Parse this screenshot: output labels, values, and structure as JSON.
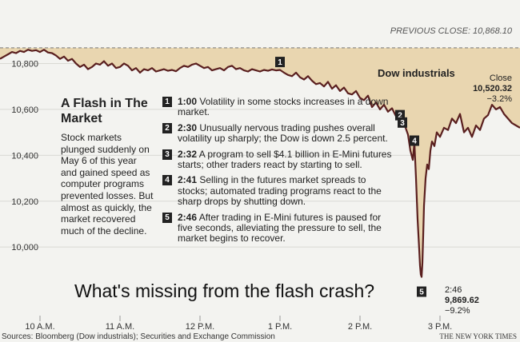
{
  "title": "A Flash in The Market",
  "intro": "Stock markets plunged suddenly on May 6 of this year and gained speed as computer programs prevented losses. But almost as quickly, the market recovered much of the decline.",
  "question": "What's missing from the flash crash?",
  "source": "Sources: Bloomberg (Dow industrials); Securities and Exchange Commission",
  "credit": "THE NEW YORK TIMES",
  "events": [
    {
      "num": "1",
      "time": "1:00",
      "text": "Volatility in some stocks increases in a down market."
    },
    {
      "num": "2",
      "time": "2:30",
      "text": "Unusually nervous trading pushes overall volatility up sharply; the Dow is down 2.5 percent."
    },
    {
      "num": "3",
      "time": "2:32",
      "text": "A program to sell $4.1 billion in E-Mini futures starts; other traders react by starting to sell."
    },
    {
      "num": "4",
      "time": "2:41",
      "text": "Selling in the futures market spreads to stocks; automated trading programs react to the sharp drops by shutting down."
    },
    {
      "num": "5",
      "time": "2:46",
      "text": "After trading in E-Mini futures is paused for five seconds, alleviating the pressure to sell, the market begins to recover."
    }
  ],
  "colors": {
    "fill": "#e9d6b0",
    "line": "#5a1f1f",
    "background": "#f3f3f0"
  },
  "chart_data": {
    "type": "area",
    "series_name": "Dow industrials",
    "previous_close_label": "PREVIOUS CLOSE: 10,868.10",
    "previous_close": 10868.1,
    "y_ticks": [
      "10,800",
      "10,600",
      "10,400",
      "10,200",
      "10,000"
    ],
    "y_tick_values": [
      10800,
      10600,
      10400,
      10200,
      10000
    ],
    "x_ticks": [
      "10 A.M.",
      "11 A.M.",
      "12 P.M.",
      "1 P.M.",
      "2 P.M.",
      "3 P.M."
    ],
    "x_tick_values": [
      10,
      11,
      12,
      13,
      14,
      15
    ],
    "x_range": [
      9.5,
      16.0
    ],
    "y_range": [
      9830,
      10920
    ],
    "close_annotation": {
      "label": "Close",
      "value": "10,520.32",
      "change": "−3.2%"
    },
    "low_annotation": {
      "time": "2:46",
      "value": "9,869.62",
      "change": "−9.2%"
    },
    "markers": [
      {
        "num": "1",
        "x": 13.0,
        "y": 10770
      },
      {
        "num": "2",
        "x": 14.5,
        "y": 10580
      },
      {
        "num": "3",
        "x": 14.53,
        "y": 10548
      },
      {
        "num": "4",
        "x": 14.68,
        "y": 10455
      },
      {
        "num": "5",
        "x": 14.77,
        "y": 9870
      }
    ],
    "x": [
      9.5,
      9.55,
      9.6,
      9.65,
      9.7,
      9.75,
      9.8,
      9.85,
      9.9,
      9.95,
      10.0,
      10.05,
      10.1,
      10.15,
      10.2,
      10.25,
      10.3,
      10.35,
      10.4,
      10.45,
      10.5,
      10.55,
      10.6,
      10.65,
      10.7,
      10.75,
      10.8,
      10.85,
      10.9,
      10.95,
      11.0,
      11.05,
      11.1,
      11.15,
      11.2,
      11.25,
      11.3,
      11.35,
      11.4,
      11.45,
      11.5,
      11.55,
      11.6,
      11.65,
      11.7,
      11.75,
      11.8,
      11.85,
      11.9,
      11.95,
      12.0,
      12.05,
      12.1,
      12.15,
      12.2,
      12.25,
      12.3,
      12.35,
      12.4,
      12.45,
      12.5,
      12.55,
      12.6,
      12.65,
      12.7,
      12.75,
      12.8,
      12.85,
      12.9,
      12.95,
      13.0,
      13.05,
      13.1,
      13.15,
      13.2,
      13.25,
      13.3,
      13.35,
      13.4,
      13.45,
      13.5,
      13.55,
      13.6,
      13.65,
      13.7,
      13.75,
      13.8,
      13.85,
      13.9,
      13.95,
      14.0,
      14.05,
      14.1,
      14.15,
      14.2,
      14.25,
      14.3,
      14.35,
      14.4,
      14.45,
      14.5,
      14.53,
      14.56,
      14.6,
      14.63,
      14.66,
      14.68,
      14.7,
      14.72,
      14.74,
      14.75,
      14.76,
      14.77,
      14.78,
      14.79,
      14.8,
      14.82,
      14.84,
      14.86,
      14.88,
      14.9,
      14.93,
      14.96,
      15.0,
      15.05,
      15.1,
      15.15,
      15.2,
      15.25,
      15.3,
      15.35,
      15.4,
      15.45,
      15.5,
      15.55,
      15.6,
      15.65,
      15.7,
      15.75,
      15.8,
      15.85,
      15.9,
      15.95,
      16.0
    ],
    "y": [
      10820,
      10830,
      10840,
      10850,
      10845,
      10855,
      10850,
      10860,
      10855,
      10858,
      10850,
      10860,
      10848,
      10845,
      10835,
      10820,
      10830,
      10812,
      10820,
      10800,
      10785,
      10795,
      10775,
      10785,
      10800,
      10795,
      10810,
      10790,
      10800,
      10780,
      10785,
      10800,
      10790,
      10770,
      10780,
      10760,
      10775,
      10770,
      10780,
      10765,
      10770,
      10775,
      10768,
      10772,
      10766,
      10780,
      10790,
      10785,
      10795,
      10800,
      10790,
      10780,
      10785,
      10770,
      10775,
      10780,
      10770,
      10785,
      10790,
      10775,
      10780,
      10770,
      10765,
      10775,
      10770,
      10765,
      10772,
      10768,
      10774,
      10770,
      10772,
      10760,
      10750,
      10745,
      10760,
      10740,
      10730,
      10745,
      10725,
      10710,
      10715,
      10700,
      10720,
      10690,
      10705,
      10680,
      10695,
      10670,
      10665,
      10680,
      10650,
      10640,
      10660,
      10610,
      10630,
      10600,
      10620,
      10590,
      10605,
      10570,
      10580,
      10550,
      10530,
      10490,
      10420,
      10380,
      10455,
      10300,
      10120,
      9990,
      9920,
      9880,
      9870,
      9930,
      10050,
      10180,
      10300,
      10360,
      10340,
      10420,
      10460,
      10440,
      10500,
      10480,
      10520,
      10510,
      10560,
      10540,
      10580,
      10500,
      10520,
      10480,
      10530,
      10510,
      10560,
      10575,
      10620,
      10600,
      10610,
      10580,
      10560,
      10540,
      10530,
      10520
    ]
  }
}
